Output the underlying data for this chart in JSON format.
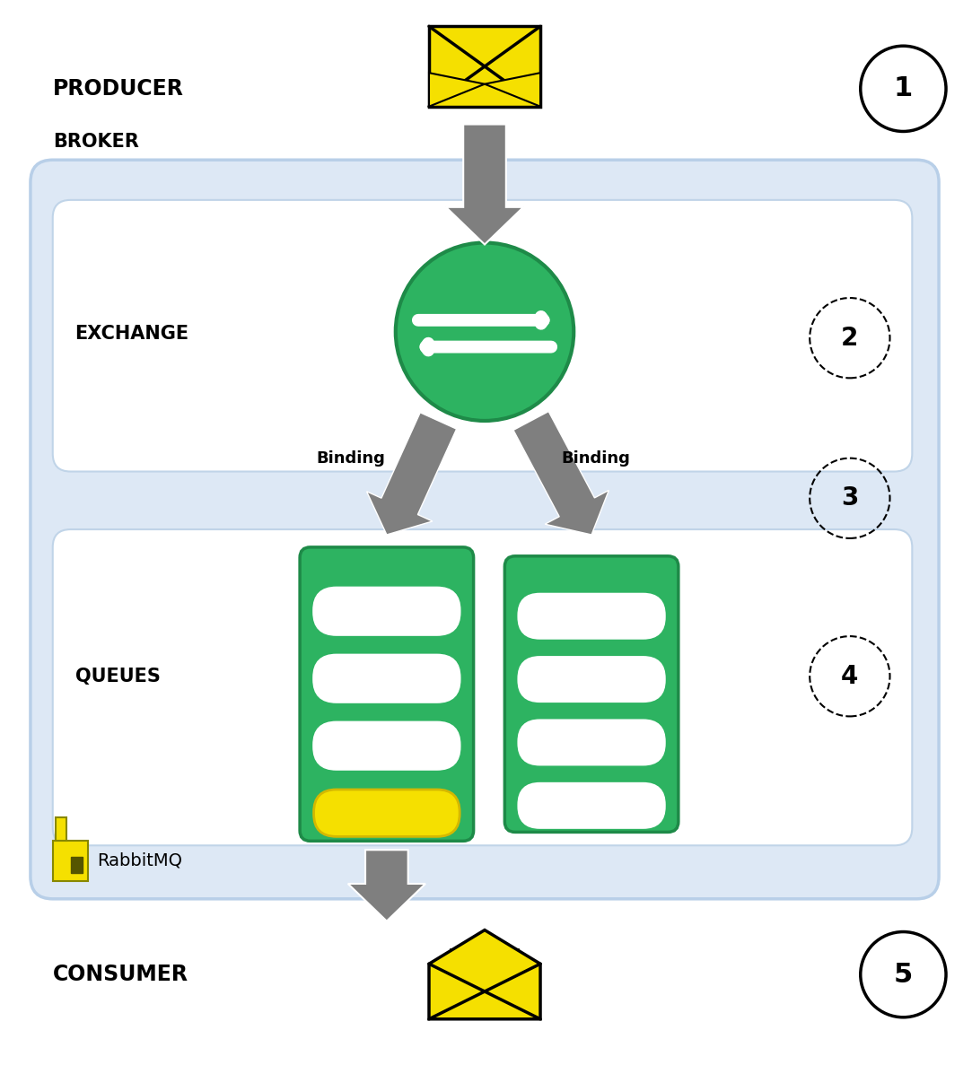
{
  "bg_color": "#ffffff",
  "broker_bg": "#dde8f5",
  "broker_border": "#b8cfe8",
  "inner_box_bg": "#ffffff",
  "inner_box_border": "#c0d4e8",
  "green_color": "#2db361",
  "green_dark": "#1e8a48",
  "yellow_color": "#f5e000",
  "yellow_dark": "#d4b800",
  "gray_arrow": "#7f7f7f",
  "gray_light": "#999999",
  "black": "#000000",
  "labels": {
    "producer": "PRODUCER",
    "broker": "BROKER",
    "exchange": "EXCHANGE",
    "queues": "QUEUES",
    "consumer": "CONSUMER",
    "binding1": "Binding",
    "binding2": "Binding",
    "rabbitmq": "RabbitMQ",
    "num1": "1",
    "num2": "2",
    "num3": "3",
    "num4": "4",
    "num5": "5"
  },
  "fig_w": 10.83,
  "fig_h": 11.87
}
